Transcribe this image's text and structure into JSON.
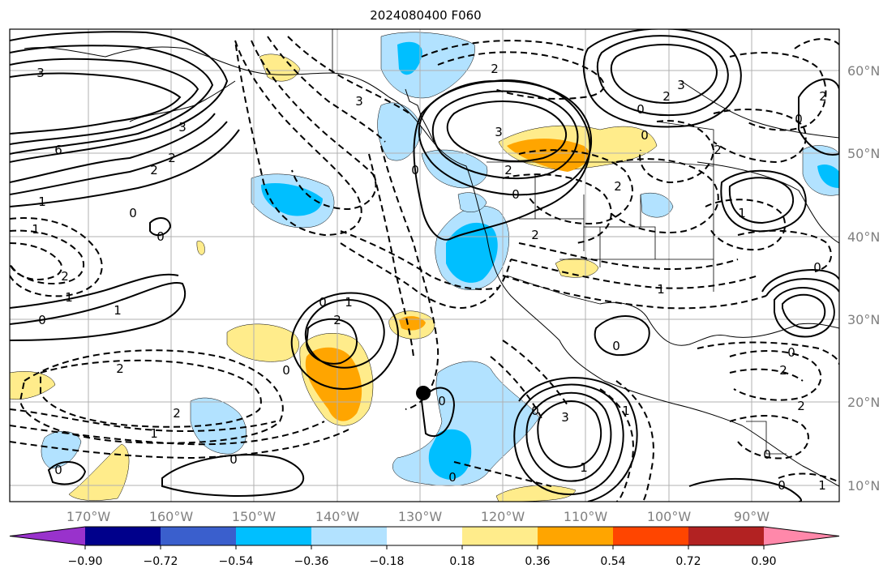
{
  "title": "2024080400 F060",
  "lon_ticks": [
    "170°W",
    "160°W",
    "150°W",
    "140°W",
    "130°W",
    "120°W",
    "110°W",
    "100°W",
    "90°W"
  ],
  "lat_ticks": [
    "60°N",
    "50°N",
    "40°N",
    "30°N",
    "20°N",
    "10°N"
  ],
  "colorbar": {
    "colors": [
      "#9932cc",
      "#00008b",
      "#3a5fcd",
      "#00bfff",
      "#b2e2ff",
      "#ffffff",
      "#ffec8b",
      "#ffa500",
      "#ff4500",
      "#b22222",
      "#ff88aa"
    ],
    "tick_labels": [
      "−0.90",
      "−0.72",
      "−0.54",
      "−0.36",
      "−0.18",
      "0.18",
      "0.36",
      "0.54",
      "0.72",
      "0.90"
    ]
  },
  "contour_labels": [
    "3",
    "6",
    "2",
    "2",
    "1",
    "0",
    "0",
    "1",
    "2",
    "1",
    "0",
    "1",
    "3",
    "3",
    "2",
    "0",
    "0",
    "2",
    "0",
    "2",
    "3",
    "0",
    "2",
    "2",
    "3",
    "0",
    "0",
    "1",
    "0",
    "1",
    "2",
    "2",
    "0",
    "2",
    "1",
    "0",
    "2",
    "1",
    "0",
    "3",
    "0",
    "0",
    "0",
    "2",
    "2",
    "0",
    "0",
    "1",
    "1",
    "1",
    "0",
    "0",
    "2"
  ],
  "marker_color": "#000000"
}
